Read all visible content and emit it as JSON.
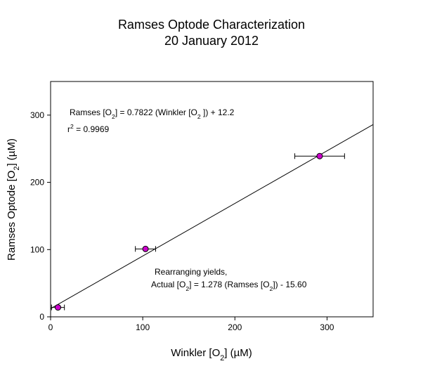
{
  "chart_data": {
    "type": "scatter",
    "title": [
      "Ramses Optode Characterization",
      "20 January 2012"
    ],
    "xlabel": {
      "parts": [
        {
          "t": "Winkler [O"
        },
        {
          "t": "2",
          "sub": true
        },
        {
          "t": "] ("
        },
        {
          "t": "µ",
          "sym": true
        },
        {
          "t": "M)"
        }
      ]
    },
    "ylabel": {
      "parts": [
        {
          "t": "Ramses Optode  [O"
        },
        {
          "t": "2",
          "sub": true
        },
        {
          "t": "] ("
        },
        {
          "t": "µ",
          "sym": true
        },
        {
          "t": "M)"
        }
      ]
    },
    "xlim": [
      0,
      350
    ],
    "ylim": [
      0,
      350
    ],
    "xticks": [
      0,
      100,
      200,
      300
    ],
    "yticks": [
      0,
      100,
      200,
      300
    ],
    "grid": false,
    "marker_color": "#cc00cc",
    "points": [
      {
        "x": 8,
        "y": 14,
        "xerr": 7
      },
      {
        "x": 103,
        "y": 101,
        "xerr": 11
      },
      {
        "x": 292,
        "y": 239,
        "xerr": 27
      }
    ],
    "fit": {
      "slope": 0.7822,
      "intercept": 12.2,
      "x_range": [
        0,
        350
      ]
    },
    "annotations": [
      {
        "name": "fit-equation",
        "lines": [
          [
            {
              "t": "Ramses [O"
            },
            {
              "t": "2",
              "sub": true
            },
            {
              "t": "] = 0.7822 (Winkler [O"
            },
            {
              "t": "2",
              "sub": true
            },
            {
              "t": " ]) + 12.2"
            }
          ],
          [
            {
              "t": "r"
            },
            {
              "t": "2",
              "sup": true
            },
            {
              "t": " = 0.9969"
            }
          ]
        ]
      },
      {
        "name": "rearranged-equation",
        "lines": [
          [
            {
              "t": "Rearranging yields,"
            }
          ],
          [
            {
              "t": "Actual [O"
            },
            {
              "t": "2",
              "sub": true
            },
            {
              "t": "] = 1.278 (Ramses [O"
            },
            {
              "t": "2",
              "sub": true
            },
            {
              "t": "])  - 15.60"
            }
          ]
        ]
      }
    ]
  }
}
